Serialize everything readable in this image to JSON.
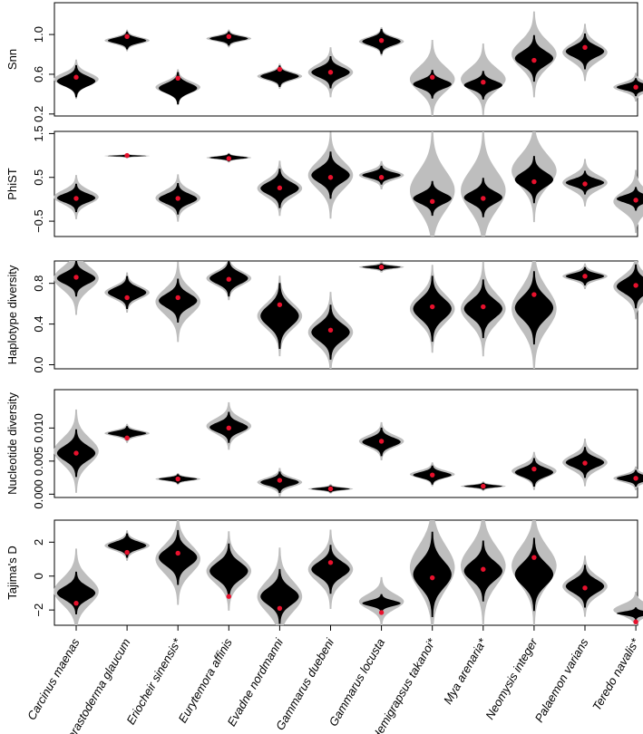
{
  "figure": {
    "x_categories": [
      "Carcinus maenas",
      "Cerastoderma glaucum",
      "Eriocheir sinensis*",
      "Eurytemora affinis",
      "Evadne nordmanni",
      "Gammarus duebeni",
      "Gammarus locusta",
      "Hemigrapsus takanoi*",
      "Mya arenaria*",
      "Neomysis integer",
      "Palaemon varians",
      "Teredo navalis*"
    ],
    "colors": {
      "null_distribution": "#bebebe",
      "observed_distribution": "#000000",
      "observed_point": "#e8112d"
    }
  },
  "chart_data": [
    {
      "type": "violin",
      "ylabel": "Snn",
      "ylim": [
        0.18,
        1.32
      ],
      "yticks": [
        0.2,
        0.6,
        1.0
      ],
      "ytick_labels": [
        "0.2",
        "0.6",
        "1.0"
      ],
      "series": [
        {
          "grey_center": 0.55,
          "grey_spread": 0.11,
          "black_center": 0.53,
          "black_spread": 0.09,
          "point": 0.57
        },
        {
          "grey_center": 0.94,
          "grey_spread": 0.06,
          "black_center": 0.94,
          "black_spread": 0.05,
          "point": 0.98
        },
        {
          "grey_center": 0.47,
          "grey_spread": 0.1,
          "black_center": 0.46,
          "black_spread": 0.09,
          "point": 0.56
        },
        {
          "grey_center": 0.96,
          "grey_spread": 0.05,
          "black_center": 0.96,
          "black_spread": 0.04,
          "point": 0.98
        },
        {
          "grey_center": 0.58,
          "grey_spread": 0.07,
          "black_center": 0.58,
          "black_spread": 0.06,
          "point": 0.65
        },
        {
          "grey_center": 0.62,
          "grey_spread": 0.14,
          "black_center": 0.62,
          "black_spread": 0.09,
          "point": 0.62
        },
        {
          "grey_center": 0.93,
          "grey_spread": 0.08,
          "black_center": 0.93,
          "black_spread": 0.07,
          "point": 0.94
        },
        {
          "grey_center": 0.55,
          "grey_spread": 0.22,
          "black_center": 0.5,
          "black_spread": 0.08,
          "point": 0.57
        },
        {
          "grey_center": 0.55,
          "grey_spread": 0.2,
          "black_center": 0.49,
          "black_spread": 0.08,
          "point": 0.52
        },
        {
          "grey_center": 0.8,
          "grey_spread": 0.24,
          "black_center": 0.76,
          "black_spread": 0.13,
          "point": 0.74
        },
        {
          "grey_center": 0.82,
          "grey_spread": 0.16,
          "black_center": 0.83,
          "black_spread": 0.1,
          "point": 0.87
        },
        {
          "grey_center": 0.47,
          "grey_spread": 0.08,
          "black_center": 0.47,
          "black_spread": 0.05,
          "point": 0.47
        }
      ]
    },
    {
      "type": "violin",
      "ylabel": "PhiST",
      "ylim": [
        -0.85,
        1.55
      ],
      "yticks": [
        -0.5,
        0.5,
        1.5
      ],
      "ytick_labels": [
        "−0.5",
        "0.5",
        "1.5"
      ],
      "series": [
        {
          "grey_center": 0.05,
          "grey_spread": 0.28,
          "black_center": 0.03,
          "black_spread": 0.18,
          "point": 0.02
        },
        {
          "grey_center": 0.99,
          "grey_spread": 0.03,
          "black_center": 0.99,
          "black_spread": 0.02,
          "point": 1.0
        },
        {
          "grey_center": 0.03,
          "grey_spread": 0.3,
          "black_center": 0.01,
          "black_spread": 0.2,
          "point": 0.02
        },
        {
          "grey_center": 0.95,
          "grey_spread": 0.06,
          "black_center": 0.95,
          "black_spread": 0.05,
          "point": 0.93
        },
        {
          "grey_center": 0.25,
          "grey_spread": 0.35,
          "black_center": 0.25,
          "black_spread": 0.25,
          "point": 0.26
        },
        {
          "grey_center": 0.55,
          "grey_spread": 0.55,
          "black_center": 0.55,
          "black_spread": 0.3,
          "point": 0.5
        },
        {
          "grey_center": 0.55,
          "grey_spread": 0.18,
          "black_center": 0.55,
          "black_spread": 0.12,
          "point": 0.5
        },
        {
          "grey_center": 0.2,
          "grey_spread": 0.8,
          "black_center": 0.02,
          "black_spread": 0.22,
          "point": -0.05
        },
        {
          "grey_center": 0.2,
          "grey_spread": 0.8,
          "black_center": 0.04,
          "black_spread": 0.25,
          "point": 0.02
        },
        {
          "grey_center": 0.65,
          "grey_spread": 0.65,
          "black_center": 0.45,
          "black_spread": 0.3,
          "point": 0.4
        },
        {
          "grey_center": 0.38,
          "grey_spread": 0.3,
          "black_center": 0.38,
          "black_spread": 0.15,
          "point": 0.35
        },
        {
          "grey_center": -0.05,
          "grey_spread": 0.4,
          "black_center": 0.01,
          "black_spread": 0.15,
          "point": -0.02
        }
      ]
    },
    {
      "type": "violin",
      "ylabel": "Haplotype diversity",
      "ylim": [
        -0.04,
        1.02
      ],
      "yticks": [
        0.0,
        0.4,
        0.8
      ],
      "ytick_labels": [
        "0.0",
        "0.4",
        "0.8"
      ],
      "series": [
        {
          "grey_center": 0.85,
          "grey_spread": 0.2,
          "black_center": 0.85,
          "black_spread": 0.1,
          "point": 0.86
        },
        {
          "grey_center": 0.71,
          "grey_spread": 0.11,
          "black_center": 0.71,
          "black_spread": 0.09,
          "point": 0.66
        },
        {
          "grey_center": 0.62,
          "grey_spread": 0.22,
          "black_center": 0.63,
          "black_spread": 0.12,
          "point": 0.66
        },
        {
          "grey_center": 0.85,
          "grey_spread": 0.12,
          "black_center": 0.85,
          "black_spread": 0.1,
          "point": 0.84
        },
        {
          "grey_center": 0.48,
          "grey_spread": 0.22,
          "black_center": 0.48,
          "black_spread": 0.18,
          "point": 0.59
        },
        {
          "grey_center": 0.32,
          "grey_spread": 0.22,
          "black_center": 0.32,
          "black_spread": 0.15,
          "point": 0.34
        },
        {
          "grey_center": 0.96,
          "grey_spread": 0.03,
          "black_center": 0.96,
          "black_spread": 0.02,
          "point": 0.96
        },
        {
          "grey_center": 0.55,
          "grey_spread": 0.24,
          "black_center": 0.55,
          "black_spread": 0.18,
          "point": 0.57
        },
        {
          "grey_center": 0.55,
          "grey_spread": 0.26,
          "black_center": 0.55,
          "black_spread": 0.16,
          "point": 0.57
        },
        {
          "grey_center": 0.55,
          "grey_spread": 0.35,
          "black_center": 0.56,
          "black_spread": 0.2,
          "point": 0.69
        },
        {
          "grey_center": 0.87,
          "grey_spread": 0.07,
          "black_center": 0.87,
          "black_spread": 0.05,
          "point": 0.87
        },
        {
          "grey_center": 0.77,
          "grey_spread": 0.18,
          "black_center": 0.77,
          "black_spread": 0.12,
          "point": 0.78
        }
      ]
    },
    {
      "type": "violin",
      "ylabel": "Nucleotide diversity",
      "ylim": [
        -0.0005,
        0.0158
      ],
      "yticks": [
        0.0,
        0.005,
        0.01
      ],
      "ytick_labels": [
        "0.000",
        "0.005",
        "0.010"
      ],
      "series": [
        {
          "grey_center": 0.0065,
          "grey_spread": 0.0035,
          "black_center": 0.0062,
          "black_spread": 0.002,
          "point": 0.0062
        },
        {
          "grey_center": 0.0092,
          "grey_spread": 0.0008,
          "black_center": 0.0092,
          "black_spread": 0.0006,
          "point": 0.0085
        },
        {
          "grey_center": 0.0023,
          "grey_spread": 0.0005,
          "black_center": 0.0023,
          "black_spread": 0.0004,
          "point": 0.0023
        },
        {
          "grey_center": 0.0103,
          "grey_spread": 0.002,
          "black_center": 0.0101,
          "black_spread": 0.0013,
          "point": 0.01
        },
        {
          "grey_center": 0.0018,
          "grey_spread": 0.0012,
          "black_center": 0.0018,
          "black_spread": 0.0009,
          "point": 0.0021
        },
        {
          "grey_center": 0.0008,
          "grey_spread": 0.0004,
          "black_center": 0.0008,
          "black_spread": 0.0003,
          "point": 0.0008
        },
        {
          "grey_center": 0.008,
          "grey_spread": 0.0016,
          "black_center": 0.0079,
          "black_spread": 0.0012,
          "point": 0.008
        },
        {
          "grey_center": 0.003,
          "grey_spread": 0.001,
          "black_center": 0.0029,
          "black_spread": 0.0008,
          "point": 0.0029
        },
        {
          "grey_center": 0.0012,
          "grey_spread": 0.0004,
          "black_center": 0.0012,
          "black_spread": 0.0003,
          "point": 0.0012
        },
        {
          "grey_center": 0.0035,
          "grey_spread": 0.0016,
          "black_center": 0.0033,
          "black_spread": 0.0012,
          "point": 0.0038
        },
        {
          "grey_center": 0.0048,
          "grey_spread": 0.002,
          "black_center": 0.0048,
          "black_spread": 0.0013,
          "point": 0.0047
        },
        {
          "grey_center": 0.0024,
          "grey_spread": 0.001,
          "black_center": 0.0024,
          "black_spread": 0.0007,
          "point": 0.0024
        }
      ]
    },
    {
      "type": "violin",
      "ylabel": "Tajima's D",
      "ylim": [
        -2.9,
        3.3
      ],
      "yticks": [
        -2,
        0,
        2
      ],
      "ytick_labels": [
        "−2",
        "0",
        "2"
      ],
      "series": [
        {
          "grey_center": -0.9,
          "grey_spread": 1.4,
          "black_center": -1.0,
          "black_spread": 0.7,
          "point": -1.6
        },
        {
          "grey_center": 1.8,
          "grey_spread": 0.5,
          "black_center": 1.8,
          "black_spread": 0.4,
          "point": 1.4
        },
        {
          "grey_center": 1.0,
          "grey_spread": 1.5,
          "black_center": 1.1,
          "black_spread": 0.9,
          "point": 1.35
        },
        {
          "grey_center": 0.3,
          "grey_spread": 1.3,
          "black_center": 0.3,
          "black_spread": 0.9,
          "point": -1.2
        },
        {
          "grey_center": -1.2,
          "grey_spread": 1.6,
          "black_center": -1.2,
          "black_spread": 0.9,
          "point": -1.9
        },
        {
          "grey_center": 0.4,
          "grey_spread": 1.3,
          "black_center": 0.4,
          "black_spread": 0.8,
          "point": 0.8
        },
        {
          "grey_center": -1.5,
          "grey_spread": 0.8,
          "black_center": -1.6,
          "black_spread": 0.3,
          "point": -2.15
        },
        {
          "grey_center": 0.5,
          "grey_spread": 2.3,
          "black_center": 0.1,
          "black_spread": 1.4,
          "point": -0.1
        },
        {
          "grey_center": 0.6,
          "grey_spread": 2.0,
          "black_center": 0.3,
          "black_spread": 1.0,
          "point": 0.4
        },
        {
          "grey_center": 0.6,
          "grey_spread": 2.0,
          "black_center": 0.1,
          "black_spread": 1.2,
          "point": 1.1
        },
        {
          "grey_center": -0.6,
          "grey_spread": 1.0,
          "black_center": -0.6,
          "black_spread": 0.7,
          "point": -0.7
        },
        {
          "grey_center": -2.0,
          "grey_spread": 0.6,
          "black_center": -2.2,
          "black_spread": 0.2,
          "point": -2.7
        }
      ]
    }
  ]
}
